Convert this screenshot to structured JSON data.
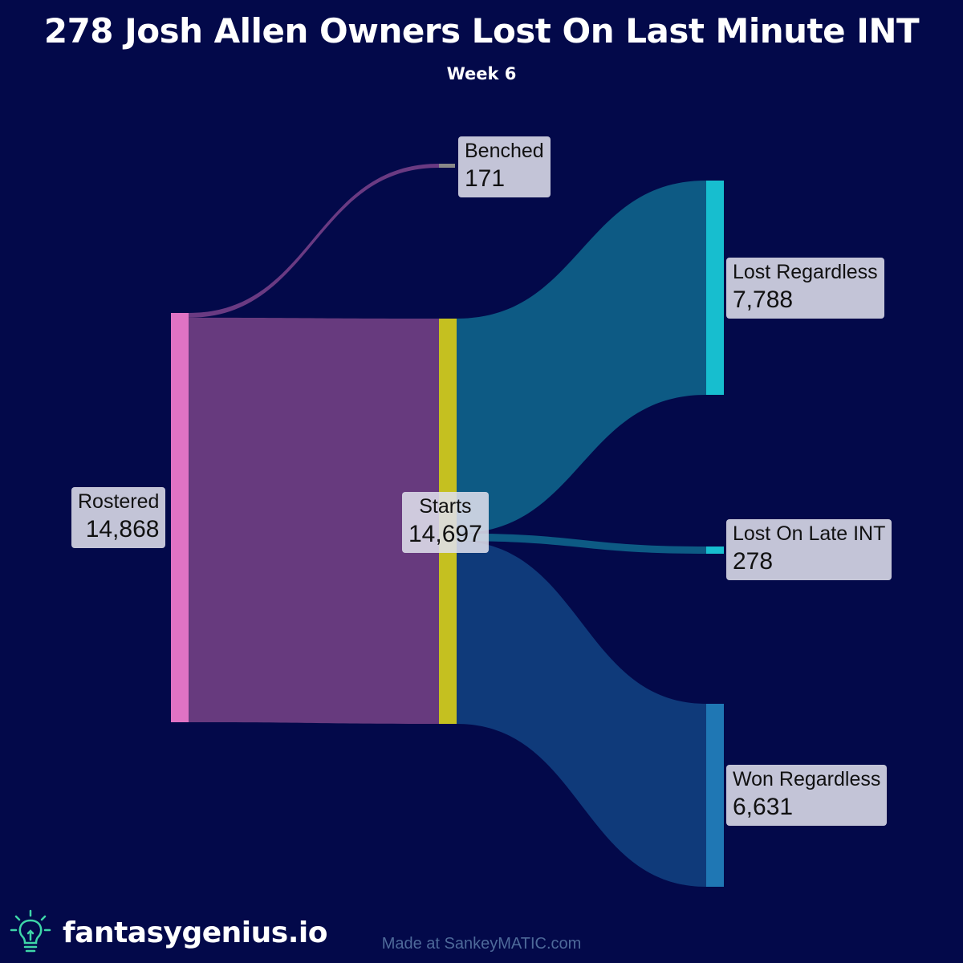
{
  "header": {
    "title": "278 Josh Allen Owners Lost On Last Minute INT",
    "subtitle": "Week 6"
  },
  "chart_data": {
    "type": "sankey",
    "nodes": [
      {
        "id": "rostered",
        "name": "Rostered",
        "value": "14,868",
        "color": "#e073c4"
      },
      {
        "id": "benched",
        "name": "Benched",
        "value": "171",
        "color": "#888888"
      },
      {
        "id": "starts",
        "name": "Starts",
        "value": "14,697",
        "color": "#c5c020"
      },
      {
        "id": "lost_regardless",
        "name": "Lost Regardless",
        "value": "7,788",
        "color": "#17becf"
      },
      {
        "id": "lost_late_int",
        "name": "Lost On Late INT",
        "value": "278",
        "color": "#17becf"
      },
      {
        "id": "won_regardless",
        "name": "Won Regardless",
        "value": "6,631",
        "color": "#1f77b4"
      }
    ],
    "links": [
      {
        "source": "rostered",
        "target": "benched",
        "value": 171,
        "color": "#6a3a82"
      },
      {
        "source": "rostered",
        "target": "starts",
        "value": 14697,
        "color": "#673a7e"
      },
      {
        "source": "starts",
        "target": "lost_regardless",
        "value": 7788,
        "color": "#0d5a84"
      },
      {
        "source": "starts",
        "target": "lost_late_int",
        "value": 278,
        "color": "#0d5a84"
      },
      {
        "source": "starts",
        "target": "won_regardless",
        "value": 6631,
        "color": "#0f3a7a"
      }
    ]
  },
  "footer": {
    "brand": "fantasygenius.io",
    "brand_icon": "lightbulb-icon",
    "credit": "Made at SankeyMATIC.com"
  }
}
